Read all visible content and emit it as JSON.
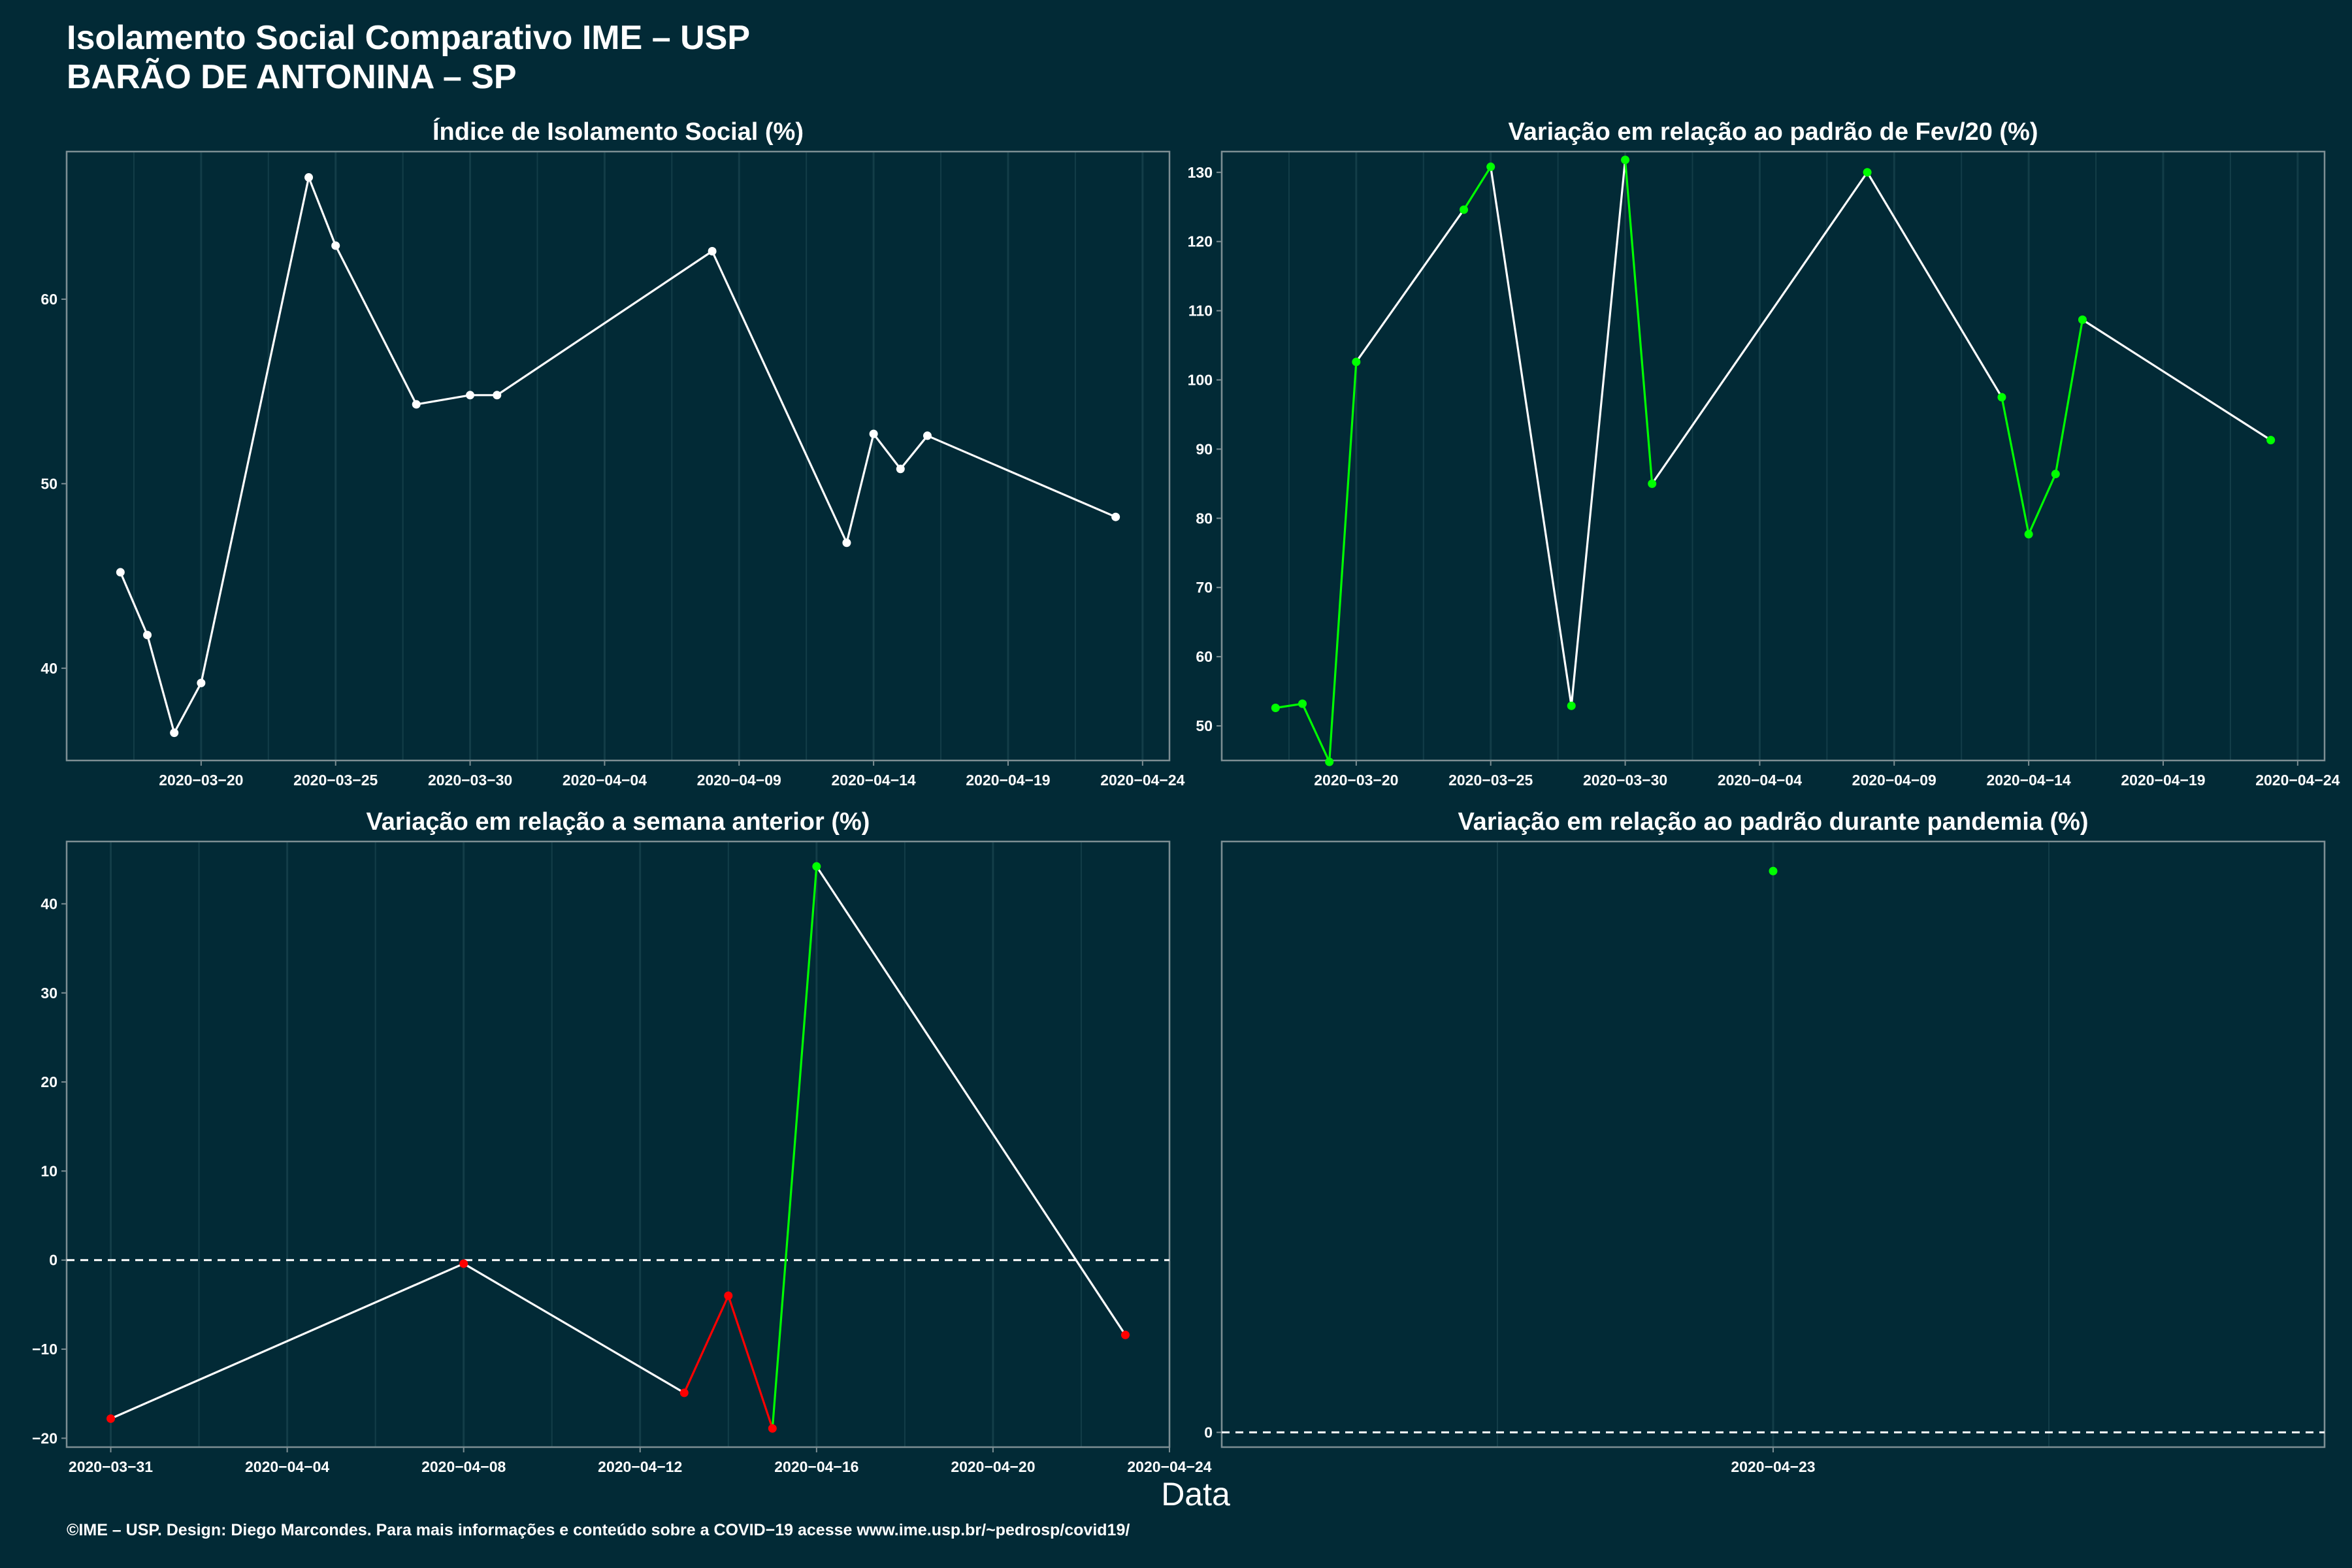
{
  "page": {
    "title_line1": "Isolamento Social Comparativo IME – USP",
    "title_line2": "BARÃO DE ANTONINA – SP",
    "xlabel": "Data",
    "footer": "©IME – USP. Design: Diego Marcondes. Para mais informações e conteúdo sobre a COVID−19 acesse www.ime.usp.br/~pedrosp/covid19/"
  },
  "colors": {
    "background": "#022a36",
    "frame": "#7d8e93",
    "grid": "#133d48",
    "line": "#ffffff",
    "increase": "#00ff00",
    "decrease": "#ff0000"
  },
  "chart_data": [
    {
      "type": "line",
      "title": "Índice de Isolamento Social (%)",
      "xlim": [
        "2020-03-15",
        "2020-04-25"
      ],
      "ylim": [
        35,
        68
      ],
      "x_ticks": [
        "2020-03-20",
        "2020-03-25",
        "2020-03-30",
        "2020-04-04",
        "2020-04-09",
        "2020-04-14",
        "2020-04-19",
        "2020-04-24"
      ],
      "y_ticks": [
        40,
        50,
        60
      ],
      "grid": true,
      "points": [
        {
          "x": "2020-03-17",
          "y": 45.2,
          "c": "white"
        },
        {
          "x": "2020-03-18",
          "y": 41.8,
          "c": "white"
        },
        {
          "x": "2020-03-19",
          "y": 36.5,
          "c": "white"
        },
        {
          "x": "2020-03-20",
          "y": 39.2,
          "c": "white"
        },
        {
          "x": "2020-03-24",
          "y": 66.6,
          "c": "white"
        },
        {
          "x": "2020-03-25",
          "y": 62.9,
          "c": "white"
        },
        {
          "x": "2020-03-28",
          "y": 54.3,
          "c": "white"
        },
        {
          "x": "2020-03-30",
          "y": 54.8,
          "c": "white"
        },
        {
          "x": "2020-03-31",
          "y": 54.8,
          "c": "white"
        },
        {
          "x": "2020-04-08",
          "y": 62.6,
          "c": "white"
        },
        {
          "x": "2020-04-13",
          "y": 46.8,
          "c": "white"
        },
        {
          "x": "2020-04-14",
          "y": 52.7,
          "c": "white"
        },
        {
          "x": "2020-04-15",
          "y": 50.8,
          "c": "white"
        },
        {
          "x": "2020-04-16",
          "y": 52.6,
          "c": "white"
        },
        {
          "x": "2020-04-23",
          "y": 48.2,
          "c": "white"
        }
      ]
    },
    {
      "type": "line",
      "title": "Variação em relação ao padrão de Fev/20 (%)",
      "xlim": [
        "2020-03-15",
        "2020-04-25"
      ],
      "ylim": [
        45,
        133
      ],
      "x_ticks": [
        "2020-03-20",
        "2020-03-25",
        "2020-03-30",
        "2020-04-04",
        "2020-04-09",
        "2020-04-14",
        "2020-04-19",
        "2020-04-24"
      ],
      "y_ticks": [
        50,
        60,
        70,
        80,
        90,
        100,
        110,
        120,
        130
      ],
      "grid": true,
      "points": [
        {
          "x": "2020-03-17",
          "y": 52.6,
          "c": "green"
        },
        {
          "x": "2020-03-18",
          "y": 53.2,
          "c": "green"
        },
        {
          "x": "2020-03-19",
          "y": 44.8,
          "c": "green"
        },
        {
          "x": "2020-03-20",
          "y": 102.6,
          "c": "green"
        },
        {
          "x": "2020-03-24",
          "y": 124.6,
          "c": "green"
        },
        {
          "x": "2020-03-25",
          "y": 130.8,
          "c": "green"
        },
        {
          "x": "2020-03-28",
          "y": 52.9,
          "c": "green"
        },
        {
          "x": "2020-03-30",
          "y": 131.8,
          "c": "green"
        },
        {
          "x": "2020-03-31",
          "y": 85.0,
          "c": "green"
        },
        {
          "x": "2020-04-08",
          "y": 130.0,
          "c": "green"
        },
        {
          "x": "2020-04-13",
          "y": 97.5,
          "c": "green"
        },
        {
          "x": "2020-04-14",
          "y": 77.7,
          "c": "green"
        },
        {
          "x": "2020-04-15",
          "y": 86.4,
          "c": "green"
        },
        {
          "x": "2020-04-16",
          "y": 108.7,
          "c": "green"
        },
        {
          "x": "2020-04-23",
          "y": 91.3,
          "c": "green"
        }
      ],
      "segment_colors": [
        "green",
        "green",
        "green",
        "white",
        "green",
        "white",
        "white",
        "green",
        "white",
        "white",
        "green",
        "green",
        "green",
        "white"
      ]
    },
    {
      "type": "line",
      "title": "Variação em relação a semana anterior (%)",
      "xlim": [
        "2020-03-30",
        "2020-04-24"
      ],
      "ylim": [
        -21,
        47
      ],
      "x_ticks": [
        "2020-03-31",
        "2020-04-04",
        "2020-04-08",
        "2020-04-12",
        "2020-04-16",
        "2020-04-20",
        "2020-04-24"
      ],
      "y_ticks": [
        -20,
        -10,
        0,
        10,
        20,
        30,
        40
      ],
      "y_tick_labels": [
        "−20",
        "−10",
        "0",
        "10",
        "20",
        "30",
        "40"
      ],
      "reference_line": 0,
      "grid": true,
      "points": [
        {
          "x": "2020-03-31",
          "y": -17.8,
          "c": "red"
        },
        {
          "x": "2020-04-08",
          "y": -0.4,
          "c": "red"
        },
        {
          "x": "2020-04-13",
          "y": -14.9,
          "c": "red"
        },
        {
          "x": "2020-04-14",
          "y": -4.0,
          "c": "red"
        },
        {
          "x": "2020-04-15",
          "y": -18.9,
          "c": "red"
        },
        {
          "x": "2020-04-16",
          "y": 44.2,
          "c": "green"
        },
        {
          "x": "2020-04-23",
          "y": -8.4,
          "c": "red"
        }
      ],
      "segment_colors": [
        "white",
        "white",
        "red",
        "red",
        "green",
        "white"
      ]
    },
    {
      "type": "scatter",
      "title": "Variação em relação ao padrão durante pandemia (%)",
      "xlim": [
        "2020-04-22",
        "2020-04-24"
      ],
      "ylim": [
        -1,
        40
      ],
      "x_ticks": [
        "2020-04-23"
      ],
      "y_ticks": [
        0
      ],
      "reference_line": 0,
      "grid": true,
      "points": [
        {
          "x": "2020-04-23",
          "y": 38.0,
          "c": "green"
        }
      ]
    }
  ]
}
